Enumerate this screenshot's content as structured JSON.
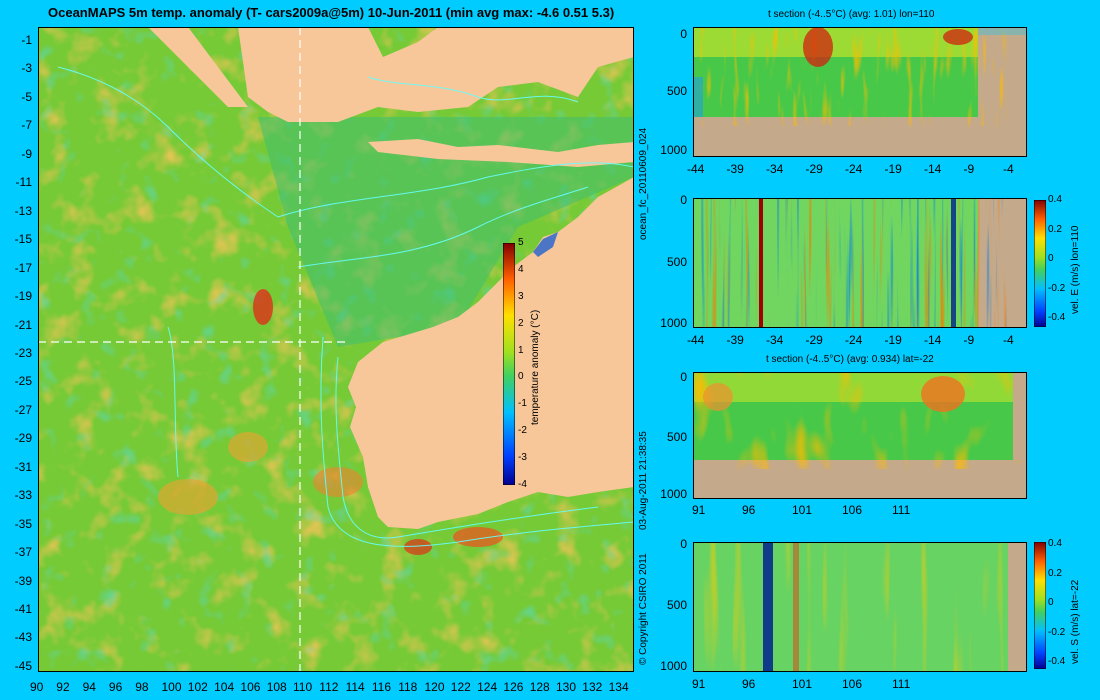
{
  "main_title": "OceanMAPS 5m temp. anomaly (T- cars2009a@5m) 10-Jun-2011 (min avg max: -4.6 0.51 5.3)",
  "map": {
    "lat_ticks": [
      "-1",
      "-3",
      "-5",
      "-7",
      "-9",
      "-11",
      "-13",
      "-15",
      "-17",
      "-19",
      "-21",
      "-23",
      "-25",
      "-27",
      "-29",
      "-31",
      "-33",
      "-35",
      "-37",
      "-39",
      "-41",
      "-43",
      "-45"
    ],
    "lon_ticks": [
      "90",
      "92",
      "94",
      "96",
      "98",
      "100",
      "102",
      "104",
      "106",
      "108",
      "110",
      "112",
      "114",
      "116",
      "118",
      "120",
      "122",
      "124",
      "126",
      "128",
      "130",
      "132",
      "134"
    ],
    "colorbar": {
      "label": "temperature anomaly (°C)",
      "ticks": [
        "5",
        "4",
        "3",
        "2",
        "1",
        "0",
        "-1",
        "-2",
        "-3",
        "-4"
      ]
    }
  },
  "side_texts": {
    "run_id": "ocean_fc_20110609_024",
    "timestamp": "03-Aug-2011 21:38:35",
    "copyright": "© Copyright CSIRO 2011"
  },
  "panels": [
    {
      "title": "t section (-4..5°C) (avg: 1.01) lon=110",
      "y_ticks": [
        "0",
        "500",
        "1000"
      ],
      "x_ticks": [
        "-44",
        "-39",
        "-34",
        "-29",
        "-24",
        "-19",
        "-14",
        "-9",
        "-4"
      ]
    },
    {
      "title": "",
      "y_ticks": [
        "0",
        "500",
        "1000"
      ],
      "x_ticks": [
        "-44",
        "-39",
        "-34",
        "-29",
        "-24",
        "-19",
        "-14",
        "-9",
        "-4"
      ],
      "colorbar_label": "vel. E (m/s) lon=110",
      "colorbar_ticks": [
        "0.4",
        "0.2",
        "0",
        "-0.2",
        "-0.4"
      ]
    },
    {
      "title": "t section (-4..5°C) (avg: 0.934) lat=-22",
      "y_ticks": [
        "0",
        "500",
        "1000"
      ],
      "x_ticks": [
        "91",
        "96",
        "101",
        "106",
        "111"
      ]
    },
    {
      "title": "",
      "y_ticks": [
        "0",
        "500",
        "1000"
      ],
      "x_ticks": [
        "91",
        "96",
        "101",
        "106",
        "111"
      ],
      "colorbar_label": "vel. S (m/s) lat=-22",
      "colorbar_ticks": [
        "0.4",
        "0.2",
        "0",
        "-0.2",
        "-0.4"
      ]
    }
  ],
  "colors": {
    "background": "#00ccff",
    "land": "#f7c79a",
    "seafloor": "#c4a98a",
    "ocean_base": "#48c848",
    "contour": "#66ffff"
  }
}
